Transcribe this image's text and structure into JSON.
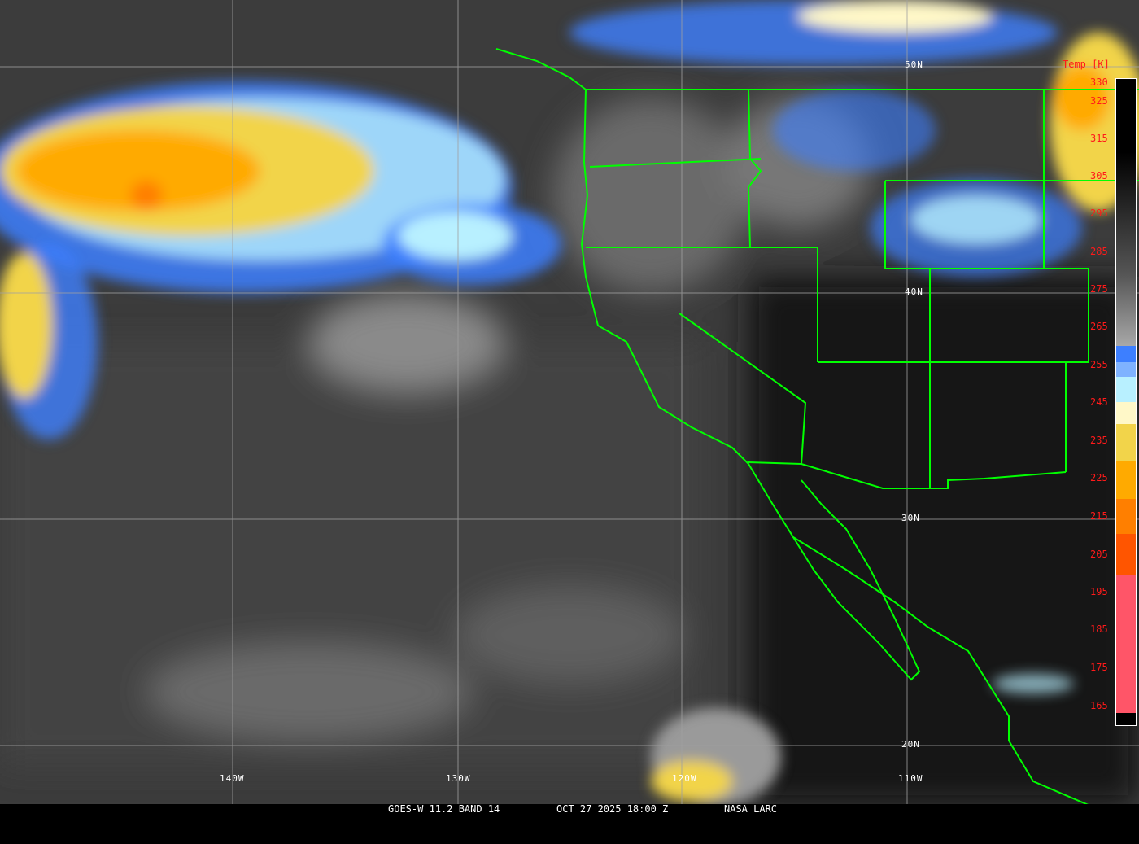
{
  "caption": {
    "satellite_band": "GOES-W 11.2 BAND 14",
    "datetime": "OCT 27 2025 18:00 Z",
    "source": "NASA LARC"
  },
  "graticule": {
    "longitudes": [
      "140W",
      "130W",
      "120W",
      "110W"
    ],
    "latitudes": [
      "50N",
      "40N",
      "30N",
      "20N"
    ]
  },
  "colorbar": {
    "title": "Temp [K]",
    "labels": [
      "330",
      "325",
      "315",
      "305",
      "295",
      "285",
      "275",
      "265",
      "255",
      "245",
      "235",
      "225",
      "215",
      "205",
      "195",
      "185",
      "175",
      "165"
    ],
    "colors": {
      "blue": "#3d7fff",
      "light_blue": "#7fb2ff",
      "cyan": "#b8f0ff",
      "pale_yellow": "#fff8c8",
      "yellow": "#f2d44a",
      "orange": "#ffaa00",
      "dark_orange": "#ff7f00",
      "red_orange": "#ff5500",
      "pink": "#ff5568"
    }
  },
  "colors": {
    "border_lines": "#00ff00",
    "graticule": "#a0a0a0",
    "label_red": "#ff1a1a"
  }
}
